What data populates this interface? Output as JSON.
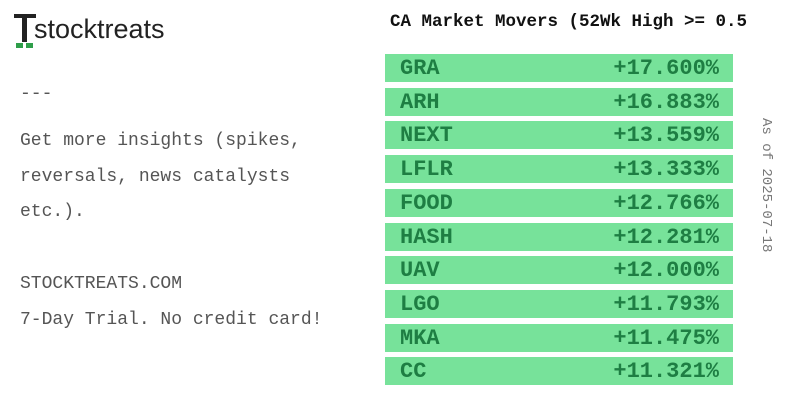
{
  "logo": {
    "text": "stocktreats"
  },
  "title": "CA Market Movers (52Wk High >= 0.5",
  "side_note": "As of 2025-07-18",
  "promo": {
    "separator": "---",
    "lines": [
      "Get more insights (spikes,",
      "reversals, news catalysts",
      "etc.)."
    ],
    "site": "STOCKTREATS.COM",
    "offer": "7-Day Trial. No credit card!"
  },
  "table": {
    "rows": [
      [
        "GRA",
        "+17.600%"
      ],
      [
        "ARH",
        "+16.883%"
      ],
      [
        "NEXT",
        "+13.559%"
      ],
      [
        "LFLR",
        "+13.333%"
      ],
      [
        "FOOD",
        "+12.766%"
      ],
      [
        "HASH",
        "+12.281%"
      ],
      [
        "UAV",
        "+12.000%"
      ],
      [
        "LGO",
        "+11.793%"
      ],
      [
        "MKA",
        "+11.475%"
      ],
      [
        "CC",
        "+11.321%"
      ]
    ]
  }
}
